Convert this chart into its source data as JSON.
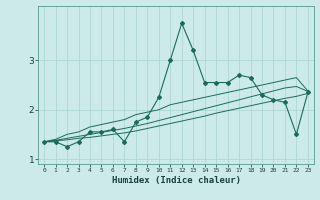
{
  "title": "",
  "xlabel": "Humidex (Indice chaleur)",
  "bg_color": "#cceae8",
  "line_color": "#1a6b5a",
  "grid_color": "#aad4d0",
  "x_values": [
    0,
    1,
    2,
    3,
    4,
    5,
    6,
    7,
    8,
    9,
    10,
    11,
    12,
    13,
    14,
    15,
    16,
    17,
    18,
    19,
    20,
    21,
    22,
    23
  ],
  "y_main": [
    1.35,
    1.35,
    1.25,
    1.35,
    1.55,
    1.55,
    1.6,
    1.35,
    1.75,
    1.85,
    2.25,
    3.0,
    3.75,
    3.2,
    2.55,
    2.55,
    2.55,
    2.7,
    2.65,
    2.3,
    2.2,
    2.15,
    1.5,
    2.35
  ],
  "y_upper": [
    1.35,
    1.4,
    1.5,
    1.55,
    1.65,
    1.7,
    1.75,
    1.8,
    1.9,
    1.95,
    2.0,
    2.1,
    2.15,
    2.2,
    2.25,
    2.3,
    2.35,
    2.4,
    2.45,
    2.5,
    2.55,
    2.6,
    2.65,
    2.38
  ],
  "y_lower": [
    1.35,
    1.37,
    1.39,
    1.42,
    1.44,
    1.47,
    1.5,
    1.53,
    1.57,
    1.62,
    1.67,
    1.72,
    1.77,
    1.82,
    1.87,
    1.93,
    1.98,
    2.03,
    2.08,
    2.13,
    2.18,
    2.23,
    2.27,
    2.33
  ],
  "y_mid": [
    1.35,
    1.38,
    1.42,
    1.46,
    1.5,
    1.54,
    1.58,
    1.62,
    1.67,
    1.72,
    1.78,
    1.84,
    1.9,
    1.96,
    2.02,
    2.08,
    2.14,
    2.2,
    2.26,
    2.32,
    2.38,
    2.44,
    2.47,
    2.37
  ],
  "ylim": [
    0.9,
    4.1
  ],
  "yticks": [
    1,
    2,
    3
  ],
  "xlim": [
    -0.5,
    23.5
  ]
}
